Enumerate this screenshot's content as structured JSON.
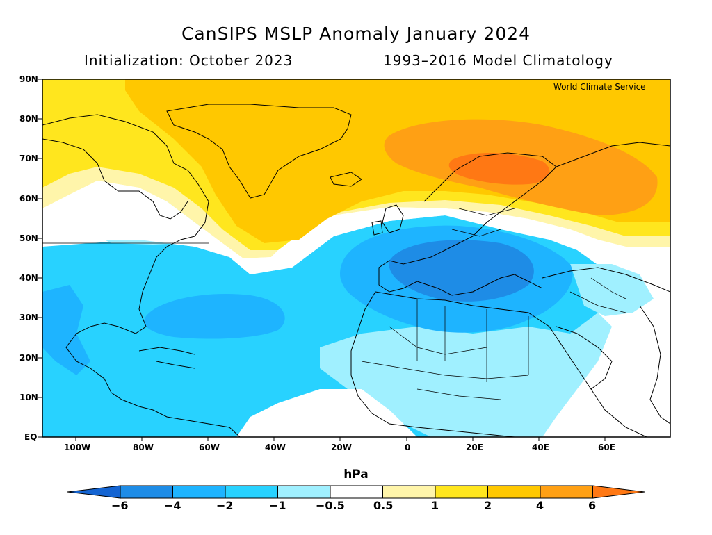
{
  "title": "CanSIPS MSLP Anomaly January 2024",
  "subtitle_left": "Initialization: October 2023",
  "subtitle_right": "1993–2016 Model Climatology",
  "credit": "World Climate Service",
  "unit": "hPa",
  "lat_labels": [
    "90N",
    "80N",
    "70N",
    "60N",
    "50N",
    "40N",
    "30N",
    "20N",
    "10N",
    "EQ"
  ],
  "lon_labels": [
    "100W",
    "80W",
    "60W",
    "40W",
    "20W",
    "0",
    "20E",
    "40E",
    "60E"
  ],
  "colorbar": {
    "ticks": [
      "−6",
      "−4",
      "−2",
      "−1",
      "−0.5",
      "0.5",
      "1",
      "2",
      "4",
      "6"
    ],
    "colors": [
      "#1464d2",
      "#1e8ce6",
      "#1eb4ff",
      "#28d2ff",
      "#a0f0ff",
      "#ffffff",
      "#fff5aa",
      "#ffe61e",
      "#ffc800",
      "#ffa014",
      "#ff7814"
    ]
  },
  "map": {
    "region": "North Atlantic, Europe, Africa",
    "bounds": {
      "lon_min": -110,
      "lon_max": 80,
      "lat_min": 0,
      "lat_max": 90
    },
    "features": [
      {
        "label": "positive anomaly over Greenland and Arctic",
        "level": "2 to 4"
      },
      {
        "label": "positive anomaly over Scandinavia and northern Russia",
        "level": "4 to 6"
      },
      {
        "label": "negative anomaly over western Atlantic",
        "level": "-2 to -4"
      },
      {
        "label": "negative anomaly over Mediterranean",
        "level": "-4 to -6"
      },
      {
        "label": "negative anomaly over subtropical Atlantic",
        "level": "-1 to -2"
      }
    ]
  }
}
